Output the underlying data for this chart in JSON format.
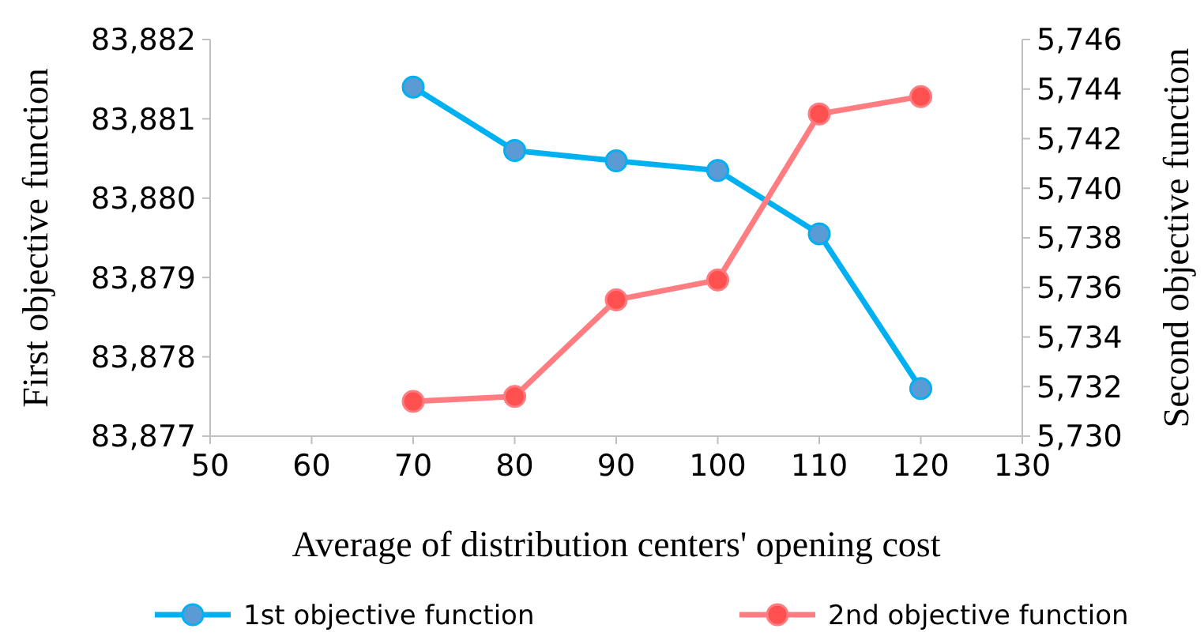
{
  "chart_data": {
    "type": "line",
    "xlabel": "Average of distribution centers' opening cost",
    "ylabel": "First objective function",
    "y2label": "Second objective function",
    "x": [
      70,
      80,
      90,
      100,
      110,
      120
    ],
    "xlim": [
      50,
      130
    ],
    "xticks": [
      50,
      60,
      70,
      80,
      90,
      100,
      110,
      120,
      130
    ],
    "ylim": [
      83877,
      83882
    ],
    "yticks": [
      {
        "value": 83877,
        "label": "83,877"
      },
      {
        "value": 83878,
        "label": "83,878"
      },
      {
        "value": 83879,
        "label": "83,879"
      },
      {
        "value": 83880,
        "label": "83,880"
      },
      {
        "value": 83881,
        "label": "83,881"
      },
      {
        "value": 83882,
        "label": "83,882"
      }
    ],
    "y2lim": [
      5730,
      5746
    ],
    "y2ticks": [
      {
        "value": 5730,
        "label": "5,730"
      },
      {
        "value": 5732,
        "label": "5,732"
      },
      {
        "value": 5734,
        "label": "5,734"
      },
      {
        "value": 5736,
        "label": "5,736"
      },
      {
        "value": 5738,
        "label": "5,738"
      },
      {
        "value": 5740,
        "label": "5,740"
      },
      {
        "value": 5742,
        "label": "5,742"
      },
      {
        "value": 5744,
        "label": "5,744"
      },
      {
        "value": 5746,
        "label": "5,746"
      }
    ],
    "series": [
      {
        "name": "1st objective function",
        "color": "#00b0f0",
        "values": [
          83881.4,
          83880.6,
          83880.47,
          83880.35,
          83879.55,
          83877.6
        ]
      },
      {
        "name": "2nd objective function",
        "color": "#ff7c80",
        "axis": "y2",
        "values": [
          5731.4,
          5731.6,
          5735.5,
          5736.3,
          5743.0,
          5743.7
        ]
      }
    ],
    "marker": "circle",
    "legend": "bottom",
    "grid": false
  }
}
